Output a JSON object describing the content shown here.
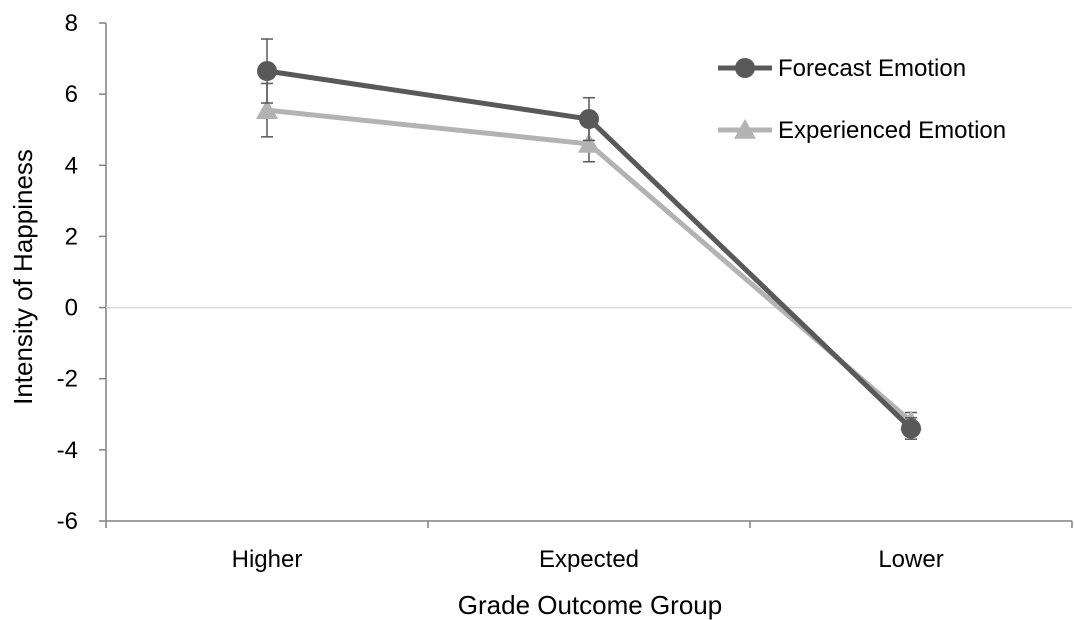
{
  "chart_data": {
    "type": "line",
    "title": "",
    "xlabel": "Grade Outcome Group",
    "ylabel": "Intensity of Happiness",
    "categories": [
      "Higher",
      "Expected",
      "Lower"
    ],
    "ylim": [
      -6,
      8
    ],
    "yticks": [
      8,
      6,
      4,
      2,
      0,
      -2,
      -4,
      -6
    ],
    "ytick_labels": [
      "8",
      "6",
      "4",
      "2",
      "0",
      "-2",
      "-4",
      "-6"
    ],
    "grid": false,
    "zero_line": true,
    "legend_position": "top-right",
    "series": [
      {
        "name": "Forecast Emotion",
        "marker": "circle",
        "color": "#595959",
        "values": [
          6.65,
          5.3,
          -3.4
        ],
        "error": [
          0.9,
          0.6,
          0.3
        ]
      },
      {
        "name": "Experienced Emotion",
        "marker": "triangle",
        "color": "#B3B3B3",
        "values": [
          5.55,
          4.6,
          -3.2
        ],
        "error": [
          0.75,
          0.5,
          0.25
        ]
      }
    ]
  }
}
